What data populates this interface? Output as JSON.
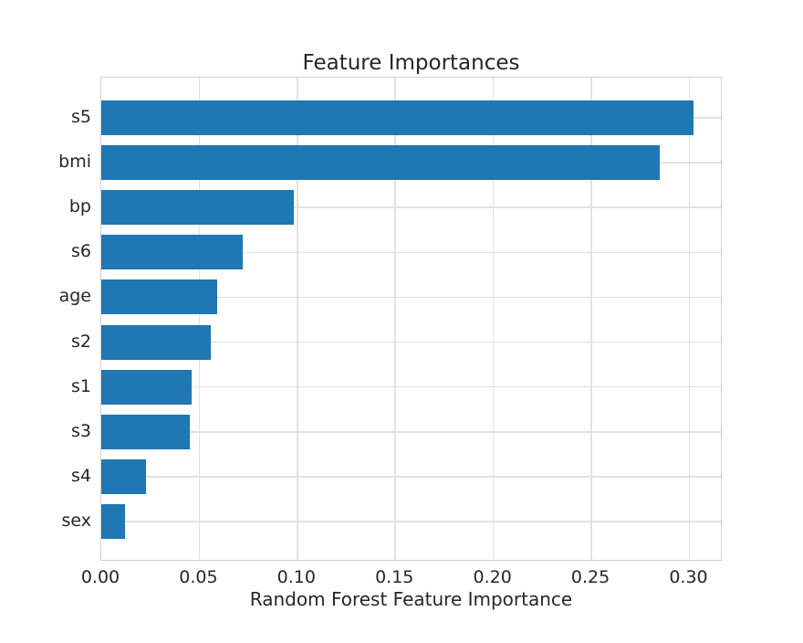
{
  "chart_data": {
    "type": "bar",
    "orientation": "horizontal",
    "title": "Feature Importances",
    "xlabel": "Random Forest Feature Importance",
    "ylabel": "",
    "categories": [
      "s5",
      "bmi",
      "bp",
      "s6",
      "age",
      "s2",
      "s1",
      "s3",
      "s4",
      "sex"
    ],
    "values": [
      0.302,
      0.285,
      0.098,
      0.072,
      0.059,
      0.056,
      0.046,
      0.045,
      0.023,
      0.012
    ],
    "xlim": [
      0,
      0.317
    ],
    "xticks": [
      0.0,
      0.05,
      0.1,
      0.15,
      0.2,
      0.25,
      0.3
    ],
    "xtick_labels": [
      "0.00",
      "0.05",
      "0.10",
      "0.15",
      "0.20",
      "0.25",
      "0.30"
    ],
    "grid": true,
    "legend": false,
    "bar_color": "#1f77b4",
    "text_color": "#262626",
    "grid_color": "#e2e2e2",
    "spine_color": "#d0d0d0",
    "background_color": "#ffffff"
  }
}
